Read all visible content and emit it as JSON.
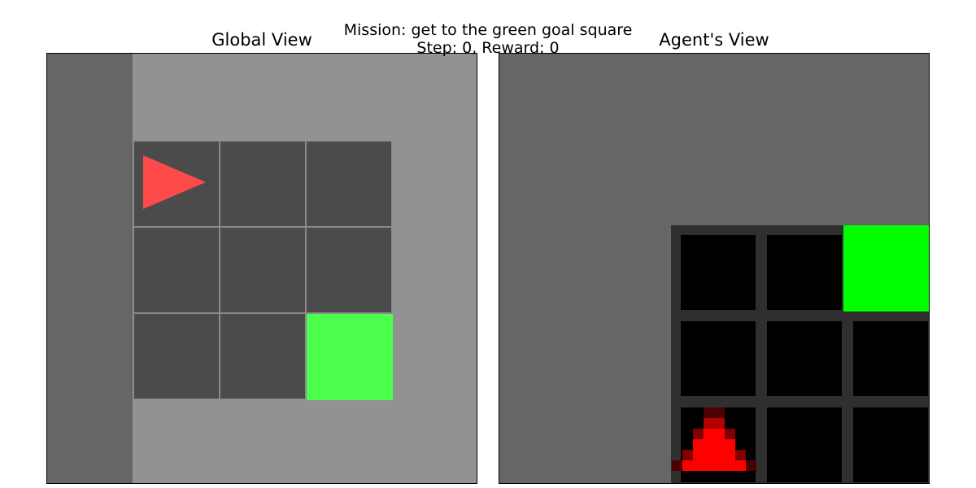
{
  "header": {
    "mission_line": "Mission: get to the green goal square",
    "status_line": "Step: 0, Reward: 0",
    "mission_text": "get to the green goal square",
    "step": 0,
    "reward": 0
  },
  "global_view": {
    "title": "Global View",
    "grid_rows": 3,
    "grid_cols": 3,
    "agent": {
      "row": 0,
      "col": 0,
      "direction": "right",
      "icon": "triangle-agent-icon"
    },
    "goal": {
      "row": 2,
      "col": 2
    },
    "colors": {
      "shaded_wall": "#666666",
      "visible_area": "#929292",
      "floor_cell": "#4b4b4b",
      "grid_line": "#8a8a8a",
      "agent": "#ff4a4a",
      "goal": "#4cff4c"
    }
  },
  "agent_view": {
    "title": "Agent's View",
    "grid_rows": 3,
    "grid_cols": 3,
    "agent": {
      "row": 2,
      "col": 0,
      "direction": "up",
      "icon": "triangle-agent-icon"
    },
    "goal": {
      "row": 0,
      "col": 2
    },
    "colors": {
      "wall": "#666666",
      "floor_cell": "#000000",
      "grid_line": "#2f2f2f",
      "agent": "#ff0000",
      "goal": "#00ff00"
    }
  }
}
